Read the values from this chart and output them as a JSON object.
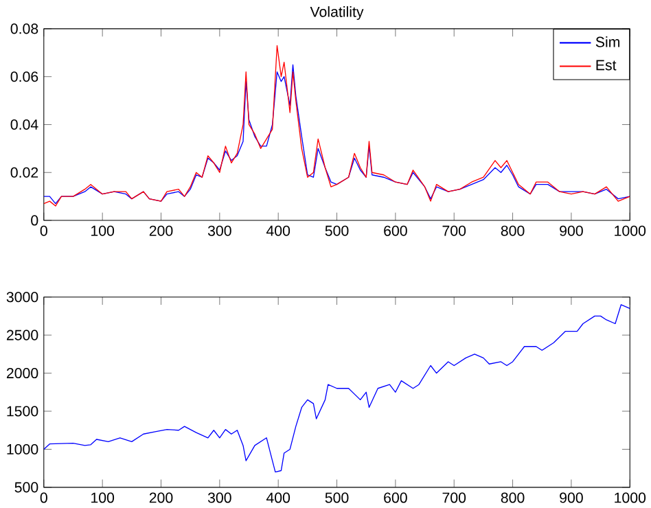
{
  "chart_data": [
    {
      "type": "line",
      "title": "Volatility",
      "xlim": [
        0,
        1000
      ],
      "ylim": [
        0,
        0.08
      ],
      "xticks": [
        0,
        100,
        200,
        300,
        400,
        500,
        600,
        700,
        800,
        900,
        1000
      ],
      "yticks": [
        0,
        {
          "value": 0.02,
          "label": "0.02"
        },
        {
          "value": 0.04,
          "label": "0.04"
        },
        {
          "value": 0.06,
          "label": "0.06"
        },
        {
          "value": 0.08,
          "label": "0.08"
        }
      ],
      "legend": "top right",
      "series": [
        {
          "name": "Sim",
          "color": "#0000ff",
          "x": [
            0,
            10,
            20,
            30,
            50,
            70,
            80,
            100,
            120,
            140,
            150,
            170,
            180,
            200,
            210,
            230,
            240,
            250,
            260,
            270,
            280,
            290,
            300,
            310,
            320,
            330,
            340,
            345,
            350,
            360,
            370,
            380,
            390,
            398,
            405,
            410,
            420,
            425,
            430,
            440,
            450,
            460,
            468,
            480,
            490,
            500,
            520,
            530,
            540,
            550,
            555,
            560,
            580,
            600,
            620,
            630,
            650,
            660,
            670,
            690,
            710,
            730,
            750,
            770,
            780,
            790,
            800,
            810,
            830,
            840,
            860,
            880,
            900,
            920,
            940,
            960,
            980,
            1000
          ],
          "values": [
            0.01,
            0.01,
            0.007,
            0.01,
            0.01,
            0.012,
            0.014,
            0.011,
            0.012,
            0.011,
            0.009,
            0.012,
            0.009,
            0.008,
            0.011,
            0.012,
            0.01,
            0.013,
            0.019,
            0.018,
            0.026,
            0.024,
            0.021,
            0.029,
            0.025,
            0.027,
            0.033,
            0.058,
            0.042,
            0.035,
            0.031,
            0.031,
            0.04,
            0.062,
            0.058,
            0.06,
            0.048,
            0.065,
            0.052,
            0.035,
            0.019,
            0.018,
            0.03,
            0.022,
            0.016,
            0.015,
            0.018,
            0.026,
            0.021,
            0.018,
            0.031,
            0.019,
            0.018,
            0.016,
            0.015,
            0.02,
            0.014,
            0.009,
            0.014,
            0.012,
            0.013,
            0.015,
            0.017,
            0.022,
            0.02,
            0.023,
            0.019,
            0.014,
            0.011,
            0.015,
            0.015,
            0.012,
            0.012,
            0.012,
            0.011,
            0.013,
            0.009,
            0.01
          ]
        },
        {
          "name": "Est",
          "color": "#ff0000",
          "x": [
            0,
            10,
            20,
            30,
            50,
            70,
            80,
            100,
            120,
            140,
            150,
            170,
            180,
            200,
            210,
            230,
            240,
            250,
            260,
            270,
            280,
            290,
            300,
            310,
            320,
            330,
            340,
            345,
            350,
            360,
            370,
            380,
            390,
            398,
            405,
            410,
            420,
            425,
            430,
            440,
            450,
            460,
            468,
            480,
            490,
            500,
            520,
            530,
            540,
            550,
            555,
            560,
            580,
            600,
            620,
            630,
            650,
            660,
            670,
            690,
            710,
            730,
            750,
            770,
            780,
            790,
            800,
            810,
            830,
            840,
            860,
            880,
            900,
            920,
            940,
            960,
            980,
            1000
          ],
          "values": [
            0.007,
            0.008,
            0.006,
            0.01,
            0.01,
            0.013,
            0.015,
            0.011,
            0.012,
            0.012,
            0.009,
            0.012,
            0.009,
            0.008,
            0.012,
            0.013,
            0.01,
            0.014,
            0.02,
            0.018,
            0.027,
            0.024,
            0.02,
            0.031,
            0.024,
            0.028,
            0.04,
            0.062,
            0.04,
            0.036,
            0.03,
            0.034,
            0.038,
            0.073,
            0.06,
            0.066,
            0.045,
            0.062,
            0.05,
            0.03,
            0.018,
            0.02,
            0.034,
            0.022,
            0.014,
            0.015,
            0.018,
            0.028,
            0.022,
            0.018,
            0.033,
            0.02,
            0.019,
            0.016,
            0.015,
            0.021,
            0.014,
            0.008,
            0.015,
            0.012,
            0.013,
            0.016,
            0.018,
            0.025,
            0.022,
            0.025,
            0.02,
            0.015,
            0.011,
            0.016,
            0.016,
            0.012,
            0.011,
            0.012,
            0.011,
            0.014,
            0.008,
            0.01
          ]
        }
      ]
    },
    {
      "type": "line",
      "xlim": [
        0,
        1000
      ],
      "ylim": [
        500,
        3000
      ],
      "xticks": [
        0,
        100,
        200,
        300,
        400,
        500,
        600,
        700,
        800,
        900,
        1000
      ],
      "yticks": [
        500,
        1000,
        1500,
        2000,
        2500,
        3000
      ],
      "series": [
        {
          "color": "#0000ff",
          "x": [
            0,
            10,
            50,
            70,
            80,
            90,
            110,
            130,
            150,
            170,
            190,
            210,
            230,
            240,
            260,
            280,
            290,
            300,
            310,
            320,
            330,
            340,
            345,
            360,
            380,
            390,
            395,
            405,
            410,
            420,
            430,
            440,
            450,
            460,
            465,
            480,
            485,
            500,
            520,
            540,
            550,
            555,
            570,
            590,
            600,
            610,
            630,
            640,
            660,
            670,
            690,
            700,
            720,
            735,
            750,
            760,
            780,
            790,
            800,
            820,
            840,
            850,
            870,
            890,
            910,
            920,
            940,
            950,
            960,
            975,
            985,
            1000
          ],
          "values": [
            1000,
            1070,
            1080,
            1050,
            1060,
            1130,
            1100,
            1150,
            1100,
            1200,
            1230,
            1260,
            1250,
            1300,
            1220,
            1150,
            1250,
            1150,
            1260,
            1200,
            1250,
            1050,
            850,
            1050,
            1150,
            850,
            700,
            720,
            950,
            1000,
            1300,
            1550,
            1650,
            1600,
            1400,
            1650,
            1850,
            1800,
            1800,
            1650,
            1750,
            1550,
            1800,
            1850,
            1750,
            1900,
            1800,
            1850,
            2100,
            2000,
            2150,
            2100,
            2200,
            2250,
            2200,
            2120,
            2150,
            2100,
            2150,
            2350,
            2350,
            2300,
            2400,
            2550,
            2550,
            2650,
            2750,
            2750,
            2700,
            2650,
            2900,
            2850
          ]
        }
      ]
    }
  ]
}
